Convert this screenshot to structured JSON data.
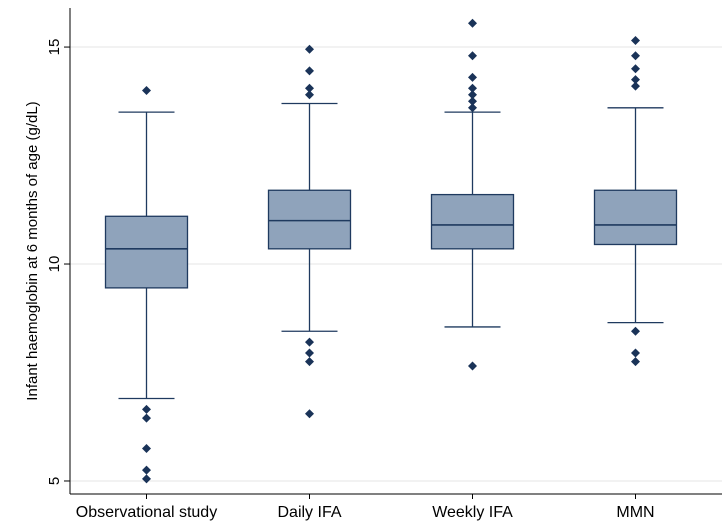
{
  "chart_data": {
    "type": "box",
    "ylabel": "Infant haemoglobin at 6 months of age (g/dL)",
    "xlabel": "",
    "ylim": [
      4.7,
      15.9
    ],
    "yticks": [
      5,
      10,
      15
    ],
    "grid": true,
    "colors": {
      "box_fill": "#8fa3bb",
      "box_stroke": "#1f3a5f",
      "outlier": "#1a3358",
      "grid": "#e6e6e6"
    },
    "categories": [
      "Observational study",
      "Daily IFA",
      "Weekly IFA",
      "MMN"
    ],
    "boxes": [
      {
        "q1": 9.45,
        "median": 10.35,
        "q3": 11.1,
        "whisker_low": 6.9,
        "whisker_high": 13.5,
        "outliers": [
          14.0,
          6.65,
          6.45,
          5.75,
          5.25,
          5.05
        ]
      },
      {
        "q1": 10.35,
        "median": 11.0,
        "q3": 11.7,
        "whisker_low": 8.45,
        "whisker_high": 13.7,
        "outliers": [
          14.95,
          14.45,
          14.05,
          13.9,
          8.2,
          7.95,
          7.75,
          6.55
        ]
      },
      {
        "q1": 10.35,
        "median": 10.9,
        "q3": 11.6,
        "whisker_low": 8.55,
        "whisker_high": 13.5,
        "outliers": [
          15.55,
          14.8,
          14.3,
          14.05,
          13.9,
          13.75,
          13.6,
          7.65
        ]
      },
      {
        "q1": 10.45,
        "median": 10.9,
        "q3": 11.7,
        "whisker_low": 8.65,
        "whisker_high": 13.6,
        "outliers": [
          15.15,
          14.8,
          14.5,
          14.25,
          14.1,
          8.45,
          7.95,
          7.75
        ]
      }
    ]
  }
}
